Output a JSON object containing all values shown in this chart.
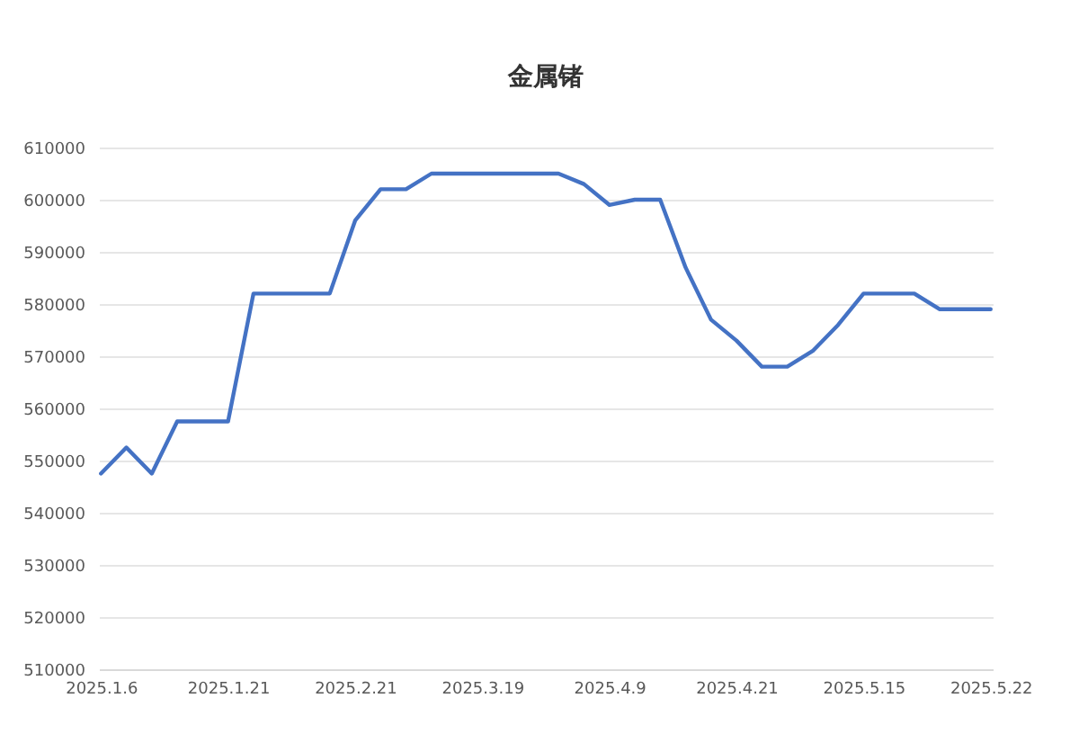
{
  "chart_data": {
    "type": "line",
    "title": "金属锗",
    "categories": [
      "2025.1.6",
      null,
      null,
      null,
      null,
      "2025.1.21",
      null,
      null,
      null,
      null,
      "2025.2.21",
      null,
      null,
      null,
      null,
      "2025.3.19",
      null,
      null,
      null,
      null,
      "2025.4.9",
      null,
      null,
      null,
      null,
      "2025.4.21",
      null,
      null,
      null,
      null,
      "2025.5.15",
      null,
      null,
      null,
      null,
      "2025.5.22"
    ],
    "series": [
      {
        "color": "#4472c4",
        "values": [
          547500,
          552500,
          547500,
          557500,
          557500,
          557500,
          582000,
          582000,
          582000,
          582000,
          596000,
          602000,
          602000,
          605000,
          605000,
          605000,
          605000,
          605000,
          605000,
          603000,
          599000,
          600000,
          600000,
          587000,
          577000,
          573000,
          568000,
          568000,
          571000,
          576000,
          582000,
          582000,
          582000,
          579000,
          579000,
          579000
        ]
      }
    ],
    "ylim": [
      510000,
      610000
    ],
    "yticks": [
      510000,
      520000,
      530000,
      540000,
      550000,
      560000,
      570000,
      580000,
      590000,
      600000,
      610000
    ],
    "grid": "y",
    "marker": "none",
    "line_style": "solid"
  }
}
